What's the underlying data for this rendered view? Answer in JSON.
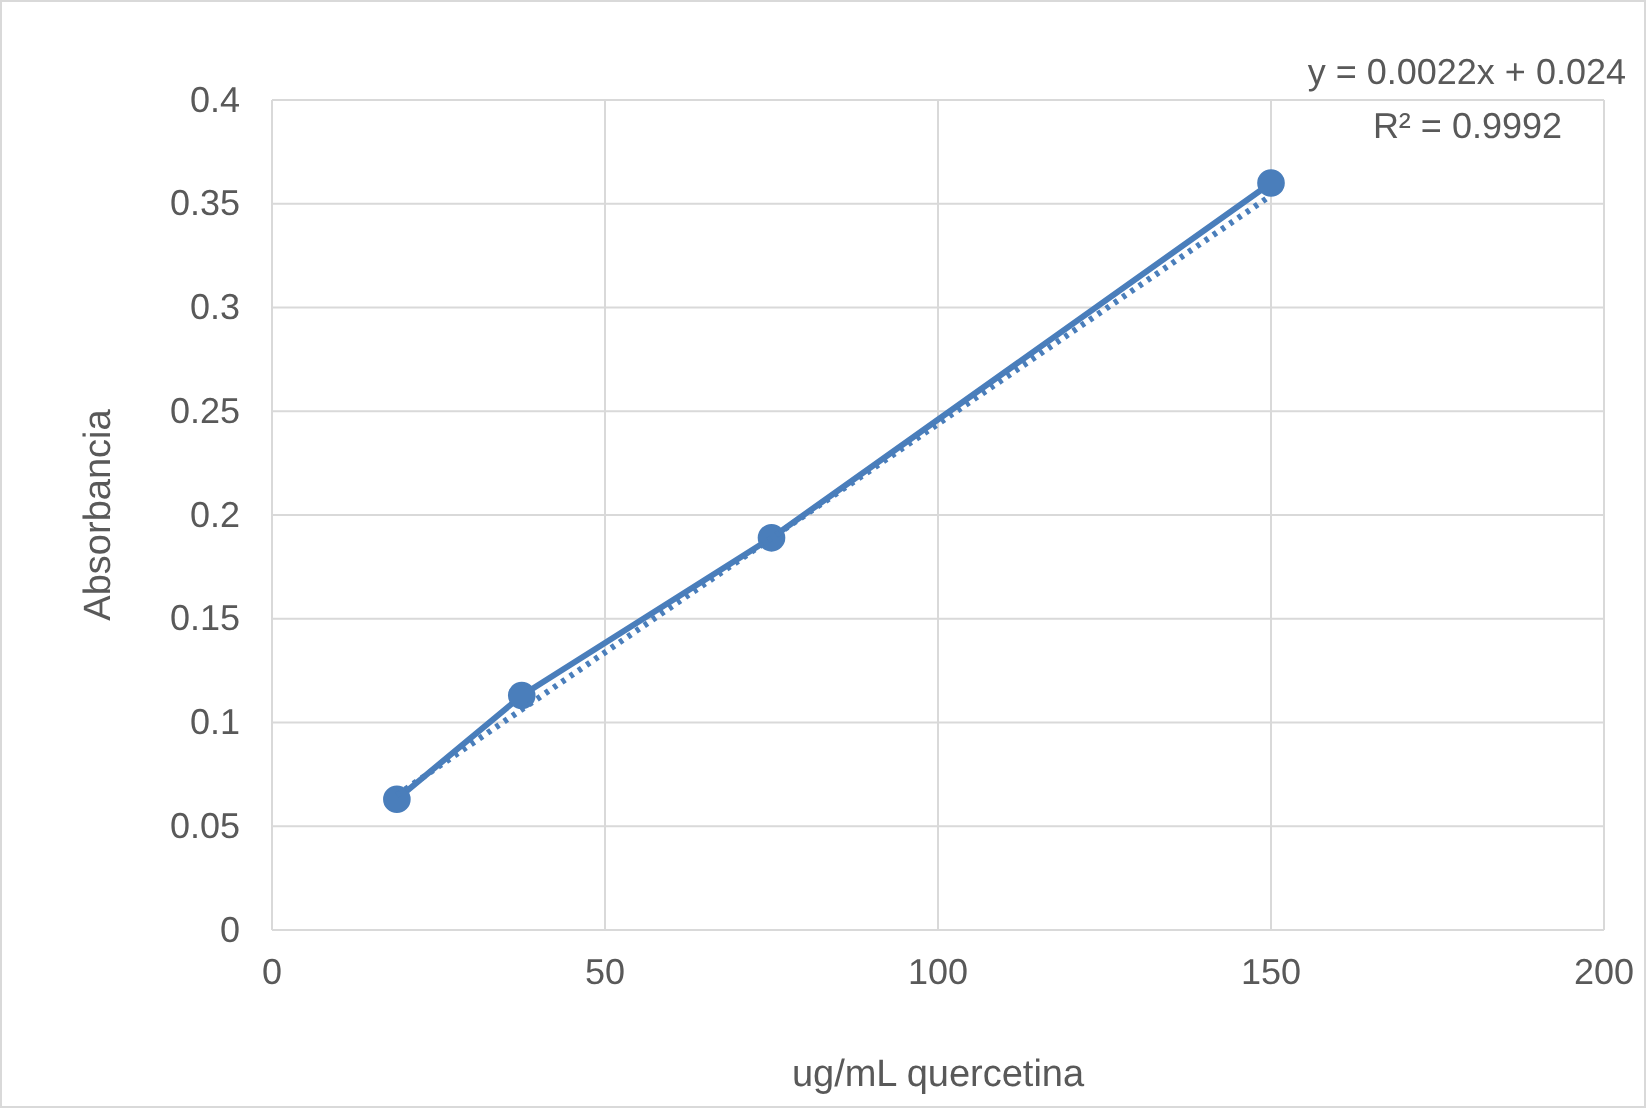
{
  "chart_data": {
    "type": "line",
    "xlabel": "ug/mL quercetina",
    "ylabel": "Absorbancia",
    "annotations": [
      "y = 0.0022x + 0.024",
      "R² = 0.9992"
    ],
    "xlim": [
      0,
      200
    ],
    "xticks": [
      0,
      50,
      100,
      150,
      200
    ],
    "ylim": [
      0,
      0.4
    ],
    "yticks": [
      0,
      0.05,
      0.1,
      0.15,
      0.2,
      0.25,
      0.3,
      0.35,
      0.4
    ],
    "grid": true,
    "series": [
      {
        "color": "#4a7ebb",
        "marker": "circle",
        "line_style": "solid",
        "x": [
          18.75,
          37.5,
          75,
          150
        ],
        "values": [
          0.063,
          0.113,
          0.189,
          0.36
        ]
      },
      {
        "color": "#4a7ebb",
        "marker": "none",
        "line_style": "dotted",
        "x": [
          18.75,
          150
        ],
        "values": [
          0.065,
          0.354
        ]
      }
    ]
  }
}
